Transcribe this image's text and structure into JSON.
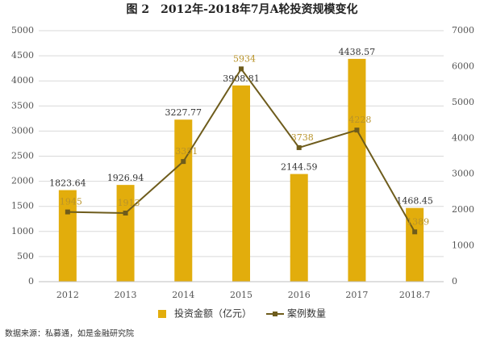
{
  "chart_data": {
    "type": "bar-line",
    "title": "图 2　2012年-2018年7月A轮投资规模变化",
    "source": "数据来源：私募通，如是金融研究院",
    "categories": [
      "2012",
      "2013",
      "2014",
      "2015",
      "2016",
      "2017",
      "2018.7"
    ],
    "series": [
      {
        "name": "投资金额（亿元）",
        "type": "bar",
        "color": "#e2ad0c",
        "values": [
          1823.64,
          1926.94,
          3227.77,
          3908.81,
          2144.59,
          4438.57,
          1468.45
        ]
      },
      {
        "name": "案例数量",
        "type": "line",
        "axis": "y2",
        "color": "#6e5c1c",
        "label_color": "#b8932a",
        "values": [
          1945,
          1913,
          3351,
          5934,
          3738,
          4228,
          1389
        ]
      }
    ],
    "ylim": [
      0,
      5000
    ],
    "yticks": [
      0,
      500,
      1000,
      1500,
      2000,
      2500,
      3000,
      3500,
      4000,
      4500,
      5000
    ],
    "y2lim": [
      0,
      7000
    ],
    "y2ticks": [
      0,
      1000,
      2000,
      3000,
      4000,
      5000,
      6000,
      7000
    ],
    "grid": true
  }
}
